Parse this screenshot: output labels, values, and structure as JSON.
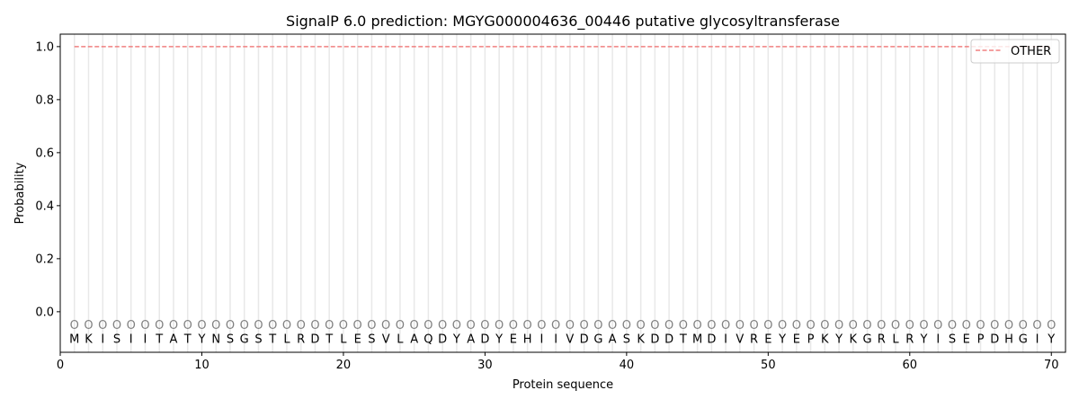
{
  "chart_data": {
    "type": "line",
    "title": "SignalP 6.0 prediction: MGYG000004636_00446 putative glycosyltransferase",
    "xlabel": "Protein sequence",
    "ylabel": "Probability",
    "xlim": [
      0,
      71
    ],
    "ylim": [
      -0.153,
      1.047
    ],
    "xticks": [
      0,
      10,
      20,
      30,
      40,
      50,
      60,
      70
    ],
    "yticks": [
      "0.0",
      "0.2",
      "0.4",
      "0.6",
      "0.8",
      "1.0"
    ],
    "legend_position": "top-right",
    "sequence": [
      "M",
      "K",
      "I",
      "S",
      "I",
      "I",
      "T",
      "A",
      "T",
      "Y",
      "N",
      "S",
      "G",
      "S",
      "T",
      "L",
      "R",
      "D",
      "T",
      "L",
      "E",
      "S",
      "V",
      "L",
      "A",
      "Q",
      "D",
      "Y",
      "A",
      "D",
      "Y",
      "E",
      "H",
      "I",
      "I",
      "V",
      "D",
      "G",
      "A",
      "S",
      "K",
      "D",
      "D",
      "T",
      "M",
      "D",
      "I",
      "V",
      "R",
      "E",
      "Y",
      "E",
      "P",
      "K",
      "Y",
      "K",
      "G",
      "R",
      "L",
      "R",
      "Y",
      "I",
      "S",
      "E",
      "P",
      "D",
      "H",
      "G",
      "I",
      "Y"
    ],
    "predicted_labels": [
      "O",
      "O",
      "O",
      "O",
      "O",
      "O",
      "O",
      "O",
      "O",
      "O",
      "O",
      "O",
      "O",
      "O",
      "O",
      "O",
      "O",
      "O",
      "O",
      "O",
      "O",
      "O",
      "O",
      "O",
      "O",
      "O",
      "O",
      "O",
      "O",
      "O",
      "O",
      "O",
      "O",
      "O",
      "O",
      "O",
      "O",
      "O",
      "O",
      "O",
      "O",
      "O",
      "O",
      "O",
      "O",
      "O",
      "O",
      "O",
      "O",
      "O",
      "O",
      "O",
      "O",
      "O",
      "O",
      "O",
      "O",
      "O",
      "O",
      "O",
      "O",
      "O",
      "O",
      "O",
      "O",
      "O",
      "O",
      "O",
      "O",
      "O"
    ],
    "series": [
      {
        "name": "OTHER",
        "color": "#f08080",
        "style": "dashed",
        "x_range": [
          1,
          70
        ],
        "value": 1.0
      }
    ]
  }
}
